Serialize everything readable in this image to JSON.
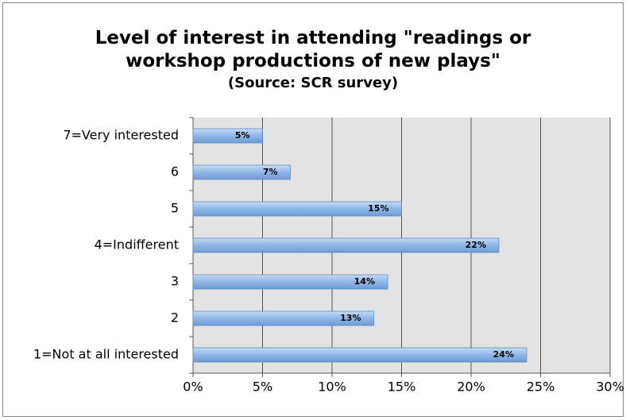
{
  "chart_data": {
    "type": "hbar",
    "title": "Level of interest in attending \"readings or workshop productions of new plays\"",
    "subtitle": "(Source: SCR survey)",
    "categories": [
      "7=Very interested",
      "6",
      "5",
      "4=Indifferent",
      "3",
      "2",
      "1=Not at all interested"
    ],
    "values": [
      5,
      7,
      15,
      22,
      14,
      13,
      24
    ],
    "value_labels": [
      "5%",
      "7%",
      "15%",
      "22%",
      "14%",
      "13%",
      "24%"
    ],
    "color": "#8fb6e6",
    "xlim": [
      0,
      30
    ],
    "xticks": [
      {
        "value": 0,
        "label": "0%"
      },
      {
        "value": 5,
        "label": "5%"
      },
      {
        "value": 10,
        "label": "10%"
      },
      {
        "value": 15,
        "label": "15%"
      },
      {
        "value": 20,
        "label": "20%"
      },
      {
        "value": 25,
        "label": "25%"
      },
      {
        "value": 30,
        "label": "30%"
      }
    ],
    "grid": true
  }
}
